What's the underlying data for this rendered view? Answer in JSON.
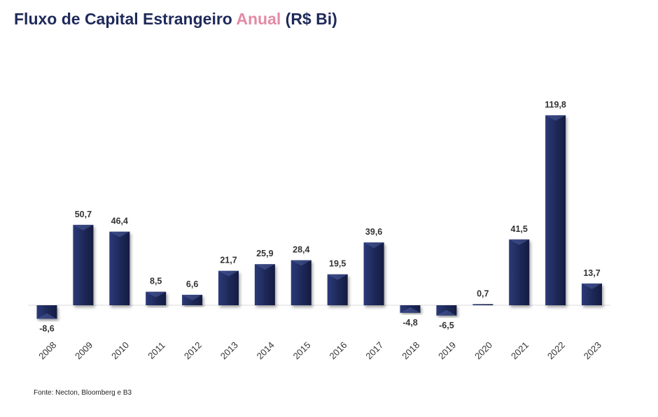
{
  "title": {
    "part1": "Fluxo de Capital Estrangeiro ",
    "part2": "Anual",
    "part3": " (R$ Bi)"
  },
  "source": "Fonte: Necton, Bloomberg e B3",
  "colors": {
    "bar": "#1f2a5a",
    "title": "#1f2a5a",
    "accent": "#e48aa6",
    "baseline": "#d9d9d9"
  },
  "chart_data": {
    "type": "bar",
    "categories": [
      "2008",
      "2009",
      "2010",
      "2011",
      "2012",
      "2013",
      "2014",
      "2015",
      "2016",
      "2017",
      "2018",
      "2019",
      "2020",
      "2021",
      "2022",
      "2023"
    ],
    "values": [
      -8.6,
      50.7,
      46.4,
      8.5,
      6.6,
      21.7,
      25.9,
      28.4,
      19.5,
      39.6,
      -4.8,
      -6.5,
      0.7,
      41.5,
      119.8,
      13.7
    ],
    "value_labels": [
      "-8,6",
      "50,7",
      "46,4",
      "8,5",
      "6,6",
      "21,7",
      "25,9",
      "28,4",
      "19,5",
      "39,6",
      "-4,8",
      "-6,5",
      "0,7",
      "41,5",
      "119,8",
      "13,7"
    ],
    "grid": false,
    "legend": "none"
  }
}
